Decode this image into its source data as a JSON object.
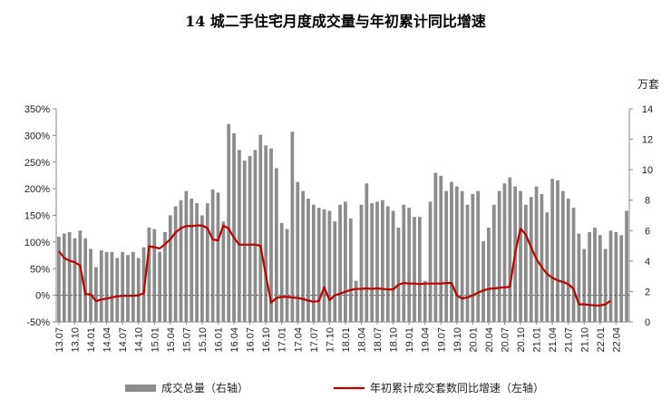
{
  "chart_data": {
    "type": "bar",
    "title": "14 城二手住宅月度成交量与年初累计同比增速",
    "right_axis_unit": "万套",
    "left_axis": {
      "ylim": [
        -50,
        350
      ],
      "ticks": [
        "350%",
        "300%",
        "250%",
        "200%",
        "150%",
        "100%",
        "50%",
        "0%",
        "-50%"
      ]
    },
    "right_axis": {
      "ylim": [
        0,
        14
      ],
      "ticks": [
        "14",
        "12",
        "10",
        "8",
        "6",
        "4",
        "2",
        "0"
      ]
    },
    "x_tick_labels": [
      "13.07",
      "13.10",
      "14.01",
      "14.04",
      "14.07",
      "14.10",
      "15.01",
      "15.04",
      "15.07",
      "15.10",
      "16.01",
      "16.04",
      "16.07",
      "16.10",
      "17.01",
      "17.04",
      "17.07",
      "17.10",
      "18.01",
      "18.04",
      "18.07",
      "18.10",
      "19.01",
      "19.04",
      "19.07",
      "19.10",
      "20.01",
      "20.04",
      "20.07",
      "20.10",
      "21.01",
      "21.04",
      "21.07",
      "21.10",
      "22.01",
      "22.04"
    ],
    "grid": false,
    "legend_position": "bottom",
    "series": [
      {
        "name": "成交总量（右轴）",
        "type": "bar",
        "axis": "right",
        "color": "#8c8c8c",
        "values": [
          5.6,
          5.8,
          5.9,
          5.5,
          6.0,
          5.5,
          4.8,
          3.6,
          4.7,
          4.6,
          4.6,
          4.2,
          4.6,
          4.4,
          4.6,
          4.2,
          4.9,
          6.2,
          6.1,
          4.6,
          5.9,
          7.0,
          7.6,
          8.0,
          8.6,
          8.1,
          7.8,
          7.0,
          7.8,
          8.7,
          8.5,
          6.6,
          13.0,
          12.4,
          11.3,
          10.6,
          10.9,
          11.3,
          12.3,
          11.6,
          11.4,
          10.1,
          6.5,
          6.1,
          12.5,
          9.2,
          8.6,
          8.1,
          7.7,
          7.5,
          7.4,
          7.3,
          6.6,
          7.7,
          7.9,
          6.8,
          2.7,
          7.7,
          9.1,
          7.8,
          7.9,
          8.0,
          7.6,
          7.3,
          6.2,
          7.7,
          7.5,
          6.9,
          6.9,
          2.7,
          7.9,
          9.8,
          9.6,
          8.6,
          9.2,
          8.9,
          8.6,
          7.7,
          8.4,
          8.6,
          5.3,
          6.2,
          7.7,
          8.6,
          9.1,
          9.5,
          8.9,
          8.6,
          7.7,
          8.2,
          8.9,
          8.4,
          7.2,
          9.4,
          9.3,
          8.6,
          8.1,
          7.5,
          5.8,
          4.8,
          5.9,
          6.2,
          5.7,
          4.8,
          6.0,
          5.9,
          5.7,
          7.3
        ],
        "x_start": "13.07"
      },
      {
        "name": "年初累计成交套数同比增速（左轴）",
        "type": "line",
        "axis": "left",
        "color": "#c00000",
        "values": [
          83,
          70,
          65,
          62,
          56,
          2,
          2,
          -11,
          -8,
          -6,
          -4,
          -2,
          -1,
          -1,
          -1,
          0,
          4,
          92,
          90,
          88,
          96,
          105,
          118,
          126,
          130,
          130,
          131,
          131,
          126,
          105,
          103,
          131,
          125,
          108,
          95,
          95,
          95,
          95,
          93,
          38,
          -14,
          -5,
          -3,
          -3,
          -4,
          -5,
          -7,
          -10,
          -12,
          -11,
          15,
          -9,
          0,
          3,
          7,
          10,
          12,
          12,
          13,
          12,
          13,
          12,
          11,
          11,
          20,
          23,
          22,
          22,
          21,
          22,
          22,
          22,
          22,
          23,
          23,
          0,
          -6,
          -4,
          0,
          5,
          9,
          12,
          13,
          14,
          15,
          16,
          80,
          125,
          114,
          90,
          68,
          53,
          40,
          33,
          28,
          25,
          21,
          12,
          -17,
          -17,
          -18,
          -19,
          -19,
          -17,
          -10
        ]
      }
    ]
  }
}
